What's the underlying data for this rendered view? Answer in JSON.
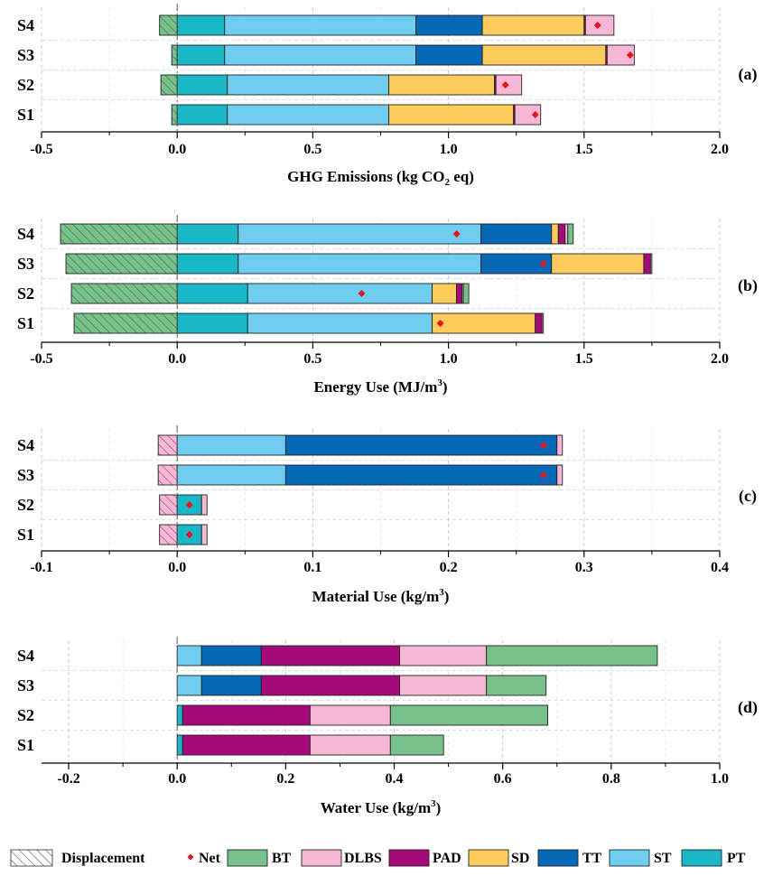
{
  "colors": {
    "PT": "#1ab7c6",
    "ST": "#6fcdf0",
    "TT": "#0568b4",
    "SD": "#fecc5c",
    "PAD": "#a50a7a",
    "DLBS": "#f7b8d6",
    "BT": "#78c18b",
    "Net": "#e8141b"
  },
  "legend": [
    {
      "key": "Displacement",
      "label": "Displacement",
      "kind": "hatch"
    },
    {
      "key": "Net",
      "label": "Net",
      "kind": "marker"
    },
    {
      "key": "BT",
      "label": "BT",
      "kind": "box"
    },
    {
      "key": "DLBS",
      "label": "DLBS",
      "kind": "box"
    },
    {
      "key": "PAD",
      "label": "PAD",
      "kind": "box"
    },
    {
      "key": "SD",
      "label": "SD",
      "kind": "box"
    },
    {
      "key": "TT",
      "label": "TT",
      "kind": "box"
    },
    {
      "key": "ST",
      "label": "ST",
      "kind": "box"
    },
    {
      "key": "PT",
      "label": "PT",
      "kind": "box"
    }
  ],
  "chart_data": [
    {
      "type": "bar",
      "orientation": "horizontal",
      "stacked": true,
      "panel_label": "(a)",
      "xlabel": "GHG Emissions (kg CO2 eq)",
      "xlabel_parts": {
        "main": "GHG Emissions (kg CO",
        "sub": "2",
        "tail": " eq)"
      },
      "xlim": [
        -0.5,
        2.0
      ],
      "xticks": [
        -0.5,
        0.0,
        0.5,
        1.0,
        1.5,
        2.0
      ],
      "tick_labels": [
        "-0.5",
        "0.0",
        "0.5",
        "1.0",
        "1.5",
        "2.0"
      ],
      "grid": true,
      "displacement_color": "BT",
      "categories": [
        "S4",
        "S3",
        "S2",
        "S1"
      ],
      "rows": [
        {
          "name": "S4",
          "displacement": -0.065,
          "segments": [
            [
              "PT",
              0.175
            ],
            [
              "ST",
              0.705
            ],
            [
              "TT",
              0.245
            ],
            [
              "SD",
              0.375
            ],
            [
              "PAD",
              0.005
            ],
            [
              "DLBS",
              0.105
            ]
          ],
          "net": 1.55
        },
        {
          "name": "S3",
          "displacement": -0.02,
          "segments": [
            [
              "PT",
              0.175
            ],
            [
              "ST",
              0.705
            ],
            [
              "TT",
              0.245
            ],
            [
              "SD",
              0.455
            ],
            [
              "PAD",
              0.005
            ],
            [
              "DLBS",
              0.1
            ]
          ],
          "net": 1.67
        },
        {
          "name": "S2",
          "displacement": -0.06,
          "segments": [
            [
              "PT",
              0.185
            ],
            [
              "ST",
              0.595
            ],
            [
              "SD",
              0.39
            ],
            [
              "PAD",
              0.005
            ],
            [
              "DLBS",
              0.095
            ]
          ],
          "net": 1.21
        },
        {
          "name": "S1",
          "displacement": -0.02,
          "segments": [
            [
              "PT",
              0.185
            ],
            [
              "ST",
              0.595
            ],
            [
              "SD",
              0.46
            ],
            [
              "PAD",
              0.005
            ],
            [
              "DLBS",
              0.095
            ]
          ],
          "net": 1.32
        }
      ]
    },
    {
      "type": "bar",
      "orientation": "horizontal",
      "stacked": true,
      "panel_label": "(b)",
      "xlabel": "Energy Use (MJ/m3)",
      "xlabel_parts": {
        "main": "Energy Use (MJ/m",
        "sup": "3",
        "tail": ")"
      },
      "xlim": [
        -0.5,
        2.0
      ],
      "xticks": [
        -0.5,
        0.0,
        0.5,
        1.0,
        1.5,
        2.0
      ],
      "tick_labels": [
        "-0.5",
        "0.0",
        "0.5",
        "1.0",
        "1.5",
        "2.0"
      ],
      "grid": true,
      "displacement_color": "BT",
      "categories": [
        "S4",
        "S3",
        "S2",
        "S1"
      ],
      "rows": [
        {
          "name": "S4",
          "displacement": -0.43,
          "segments": [
            [
              "PT",
              0.225
            ],
            [
              "ST",
              0.895
            ],
            [
              "TT",
              0.26
            ],
            [
              "SD",
              0.025
            ],
            [
              "PAD",
              0.025
            ],
            [
              "DLBS",
              0.01
            ],
            [
              "BT",
              0.02
            ]
          ],
          "net": 1.03
        },
        {
          "name": "S3",
          "displacement": -0.41,
          "segments": [
            [
              "PT",
              0.225
            ],
            [
              "ST",
              0.895
            ],
            [
              "TT",
              0.26
            ],
            [
              "SD",
              0.34
            ],
            [
              "PAD",
              0.025
            ],
            [
              "DLBS",
              0.005
            ]
          ],
          "net": 1.35
        },
        {
          "name": "S2",
          "displacement": -0.39,
          "segments": [
            [
              "PT",
              0.26
            ],
            [
              "ST",
              0.68
            ],
            [
              "SD",
              0.09
            ],
            [
              "PAD",
              0.02
            ],
            [
              "DLBS",
              0.005
            ],
            [
              "BT",
              0.02
            ]
          ],
          "net": 0.68
        },
        {
          "name": "S1",
          "displacement": -0.38,
          "segments": [
            [
              "PT",
              0.26
            ],
            [
              "ST",
              0.68
            ],
            [
              "SD",
              0.38
            ],
            [
              "PAD",
              0.025
            ],
            [
              "DLBS",
              0.005
            ]
          ],
          "net": 0.97
        }
      ]
    },
    {
      "type": "bar",
      "orientation": "horizontal",
      "stacked": true,
      "panel_label": "(c)",
      "xlabel": "Material Use (kg/m3)",
      "xlabel_parts": {
        "main": "Material Use (kg/m",
        "sup": "3",
        "tail": ")"
      },
      "xlim": [
        -0.1,
        0.4
      ],
      "xticks": [
        -0.1,
        0.0,
        0.1,
        0.2,
        0.3,
        0.4
      ],
      "tick_labels": [
        "-0.1",
        "0.0",
        "0.1",
        "0.2",
        "0.3",
        "0.4"
      ],
      "grid": true,
      "displacement_color": "DLBS",
      "categories": [
        "S4",
        "S3",
        "S2",
        "S1"
      ],
      "rows": [
        {
          "name": "S4",
          "displacement": -0.014,
          "segments": [
            [
              "ST",
              0.08
            ],
            [
              "TT",
              0.2
            ],
            [
              "DLBS",
              0.004
            ]
          ],
          "net": 0.27
        },
        {
          "name": "S3",
          "displacement": -0.014,
          "segments": [
            [
              "ST",
              0.08
            ],
            [
              "TT",
              0.2
            ],
            [
              "DLBS",
              0.004
            ]
          ],
          "net": 0.27
        },
        {
          "name": "S2",
          "displacement": -0.013,
          "segments": [
            [
              "PT",
              0.018
            ],
            [
              "DLBS",
              0.004
            ]
          ],
          "net": 0.009
        },
        {
          "name": "S1",
          "displacement": -0.013,
          "segments": [
            [
              "PT",
              0.018
            ],
            [
              "DLBS",
              0.004
            ]
          ],
          "net": 0.009
        }
      ]
    },
    {
      "type": "bar",
      "orientation": "horizontal",
      "stacked": true,
      "panel_label": "(d)",
      "xlabel": "Water Use (kg/m3)",
      "xlabel_parts": {
        "main": "Water Use (kg/m",
        "sup": "3",
        "tail": ")"
      },
      "xlim": [
        -0.25,
        1.0
      ],
      "xticks": [
        -0.2,
        0.0,
        0.2,
        0.4,
        0.6,
        0.8,
        1.0
      ],
      "tick_labels": [
        "-0.2",
        "0.0",
        "0.2",
        "0.4",
        "0.6",
        "0.8",
        "1.0"
      ],
      "grid": true,
      "displacement_color": "BT",
      "categories": [
        "S4",
        "S3",
        "S2",
        "S1"
      ],
      "rows": [
        {
          "name": "S4",
          "displacement": 0,
          "segments": [
            [
              "ST",
              0.045
            ],
            [
              "TT",
              0.11
            ],
            [
              "PAD",
              0.255
            ],
            [
              "DLBS",
              0.16
            ],
            [
              "BT",
              0.315
            ]
          ],
          "net": null
        },
        {
          "name": "S3",
          "displacement": 0,
          "segments": [
            [
              "ST",
              0.045
            ],
            [
              "TT",
              0.11
            ],
            [
              "PAD",
              0.255
            ],
            [
              "DLBS",
              0.16
            ],
            [
              "BT",
              0.11
            ]
          ],
          "net": null
        },
        {
          "name": "S2",
          "displacement": 0,
          "segments": [
            [
              "PT",
              0.01
            ],
            [
              "PAD",
              0.235
            ],
            [
              "DLBS",
              0.148
            ],
            [
              "BT",
              0.29
            ]
          ],
          "net": null
        },
        {
          "name": "S1",
          "displacement": 0,
          "segments": [
            [
              "PT",
              0.01
            ],
            [
              "PAD",
              0.235
            ],
            [
              "DLBS",
              0.148
            ],
            [
              "BT",
              0.098
            ]
          ],
          "net": null
        }
      ]
    }
  ]
}
